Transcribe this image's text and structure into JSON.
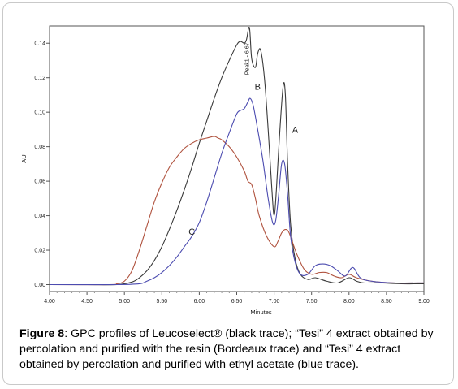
{
  "chart_data": {
    "type": "line",
    "title": "",
    "xlabel": "Minutes",
    "ylabel": "AU",
    "xlim": [
      4.0,
      9.0
    ],
    "ylim": [
      -0.004,
      0.15
    ],
    "x_ticks": [
      "4.00",
      "4.50",
      "5.00",
      "5.50",
      "6.00",
      "6.50",
      "7.00",
      "7.50",
      "8.00",
      "8.50",
      "9.00"
    ],
    "y_ticks": [
      "0.00",
      "0.02",
      "0.04",
      "0.06",
      "0.08",
      "0.10",
      "0.12",
      "0.14"
    ],
    "grid": false,
    "series": [
      {
        "color": "#3a3a3a",
        "x": [
          4.0,
          4.5,
          4.9,
          5.1,
          5.2,
          5.3,
          5.4,
          5.5,
          5.6,
          5.7,
          5.8,
          5.9,
          6.0,
          6.1,
          6.2,
          6.3,
          6.4,
          6.5,
          6.55,
          6.6,
          6.63,
          6.67,
          6.7,
          6.75,
          6.78,
          6.82,
          6.87,
          6.92,
          6.97,
          7.0,
          7.03,
          7.07,
          7.12,
          7.15,
          7.18,
          7.22,
          7.28,
          7.35,
          7.45,
          7.55,
          7.7,
          7.85,
          8.0,
          8.1,
          8.2,
          8.4,
          8.7,
          9.0
        ],
        "y": [
          0,
          0,
          0,
          0.0015,
          0.004,
          0.008,
          0.014,
          0.022,
          0.032,
          0.043,
          0.055,
          0.068,
          0.082,
          0.095,
          0.108,
          0.12,
          0.13,
          0.139,
          0.141,
          0.14,
          0.142,
          0.149,
          0.131,
          0.126,
          0.134,
          0.136,
          0.12,
          0.09,
          0.055,
          0.04,
          0.055,
          0.085,
          0.115,
          0.11,
          0.07,
          0.035,
          0.015,
          0.006,
          0.003,
          0.004,
          0.002,
          0.001,
          0.004,
          0.002,
          0.001,
          0.001,
          0.0005,
          0.0005
        ]
      },
      {
        "color": "#b0533f",
        "x": [
          4.0,
          4.8,
          4.9,
          5.0,
          5.1,
          5.2,
          5.3,
          5.4,
          5.5,
          5.6,
          5.7,
          5.8,
          5.9,
          6.0,
          6.1,
          6.2,
          6.25,
          6.3,
          6.4,
          6.5,
          6.6,
          6.65,
          6.7,
          6.75,
          6.8,
          6.9,
          7.0,
          7.05,
          7.1,
          7.15,
          7.2,
          7.3,
          7.4,
          7.5,
          7.6,
          7.7,
          7.8,
          7.9,
          8.0,
          8.1,
          8.3,
          8.6,
          9.0
        ],
        "y": [
          0,
          0,
          0.0005,
          0.002,
          0.008,
          0.02,
          0.034,
          0.048,
          0.059,
          0.068,
          0.074,
          0.079,
          0.082,
          0.084,
          0.085,
          0.086,
          0.085,
          0.084,
          0.08,
          0.074,
          0.066,
          0.06,
          0.058,
          0.05,
          0.04,
          0.028,
          0.022,
          0.025,
          0.03,
          0.032,
          0.03,
          0.018,
          0.009,
          0.006,
          0.007,
          0.007,
          0.005,
          0.004,
          0.006,
          0.004,
          0.002,
          0.001,
          0.001
        ]
      },
      {
        "color": "#4c4cb0",
        "x": [
          4.0,
          4.9,
          5.2,
          5.3,
          5.4,
          5.5,
          5.6,
          5.7,
          5.8,
          5.9,
          6.0,
          6.1,
          6.2,
          6.3,
          6.4,
          6.5,
          6.55,
          6.6,
          6.65,
          6.68,
          6.72,
          6.78,
          6.85,
          6.92,
          6.98,
          7.02,
          7.06,
          7.1,
          7.14,
          7.18,
          7.22,
          7.28,
          7.35,
          7.45,
          7.55,
          7.65,
          7.75,
          7.85,
          7.95,
          8.05,
          8.15,
          8.3,
          8.6,
          9.0
        ],
        "y": [
          0,
          0,
          0.0005,
          0.002,
          0.004,
          0.007,
          0.011,
          0.016,
          0.022,
          0.028,
          0.036,
          0.048,
          0.062,
          0.076,
          0.088,
          0.099,
          0.101,
          0.102,
          0.106,
          0.108,
          0.104,
          0.09,
          0.072,
          0.05,
          0.036,
          0.037,
          0.052,
          0.07,
          0.07,
          0.052,
          0.028,
          0.013,
          0.006,
          0.006,
          0.011,
          0.012,
          0.011,
          0.008,
          0.005,
          0.01,
          0.004,
          0.002,
          0.001,
          0.001
        ]
      }
    ],
    "annotations": [
      {
        "text": "A",
        "x": 7.28,
        "y": 0.088
      },
      {
        "text": "B",
        "x": 6.78,
        "y": 0.113
      },
      {
        "text": "C",
        "x": 5.9,
        "y": 0.029
      },
      {
        "text": "Peak1 - 6.67",
        "x": 6.66,
        "y": 0.131,
        "rotate": -90
      }
    ]
  },
  "caption": {
    "label": "Figure 8",
    "text": ": GPC profiles of Leucoselect® (black trace); “Tesi” 4 extract obtained by percolation and purified with the resin (Bordeaux trace) and “Tesi” 4 extract obtained by percolation and purified with ethyl acetate (blue trace)."
  }
}
